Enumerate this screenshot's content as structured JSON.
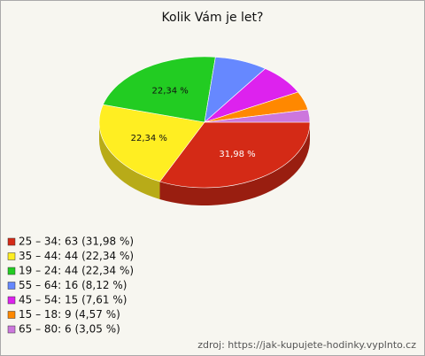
{
  "chart_data": {
    "type": "pie",
    "title": "Kolik Vám je let?",
    "categories": [
      "25 – 34: 63 (31,98 %)",
      "35 – 44: 44 (22,34 %)",
      "19 – 24: 44 (22,34 %)",
      "55 – 64: 16 (8,12 %)",
      "45 – 54: 15 (7,61 %)",
      "15 – 18: 9 (4,57 %)",
      "65 – 80: 6 (3,05 %)"
    ],
    "values": [
      31.98,
      22.34,
      22.34,
      8.12,
      7.61,
      4.57,
      3.05
    ],
    "value_labels": [
      "31,98 %",
      "22,34 %",
      "22,34 %",
      null,
      null,
      null,
      null
    ],
    "colors": [
      "#d42a16",
      "#ffee22",
      "#22cc22",
      "#6688ff",
      "#dd22ee",
      "#ff8800",
      "#cc77dd"
    ],
    "source": "zdroj: https://jak-kupujete-hodinky.vyplnto.cz"
  }
}
